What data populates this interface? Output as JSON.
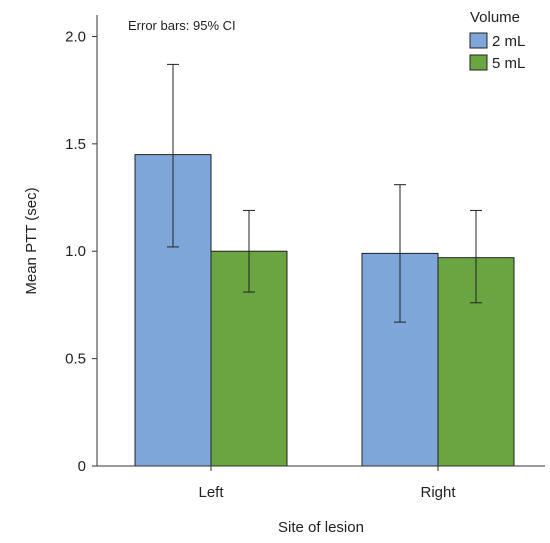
{
  "chart_data": {
    "type": "bar",
    "title": "",
    "xlabel": "Site of lesion",
    "ylabel": "Mean PTT (sec)",
    "categories": [
      "Left",
      "Right"
    ],
    "ylim": [
      0,
      2.1
    ],
    "yticks": [
      0,
      0.5,
      1.0,
      1.5,
      2.0
    ],
    "ytick_labels": [
      "0",
      "0.5",
      "1.0",
      "1.5",
      "2.0"
    ],
    "annotation": "Error bars: 95% CI",
    "legend": {
      "title": "Volume",
      "position": "top-right"
    },
    "grid": false,
    "series": [
      {
        "name": "2 mL",
        "color": "#7ea6d9",
        "values": [
          1.45,
          0.99
        ],
        "ci_low": [
          1.02,
          0.67
        ],
        "ci_high": [
          1.87,
          1.31
        ]
      },
      {
        "name": "5 mL",
        "color": "#6aa542",
        "values": [
          1.0,
          0.97
        ],
        "ci_low": [
          0.81,
          0.76
        ],
        "ci_high": [
          1.19,
          1.19
        ]
      }
    ]
  }
}
